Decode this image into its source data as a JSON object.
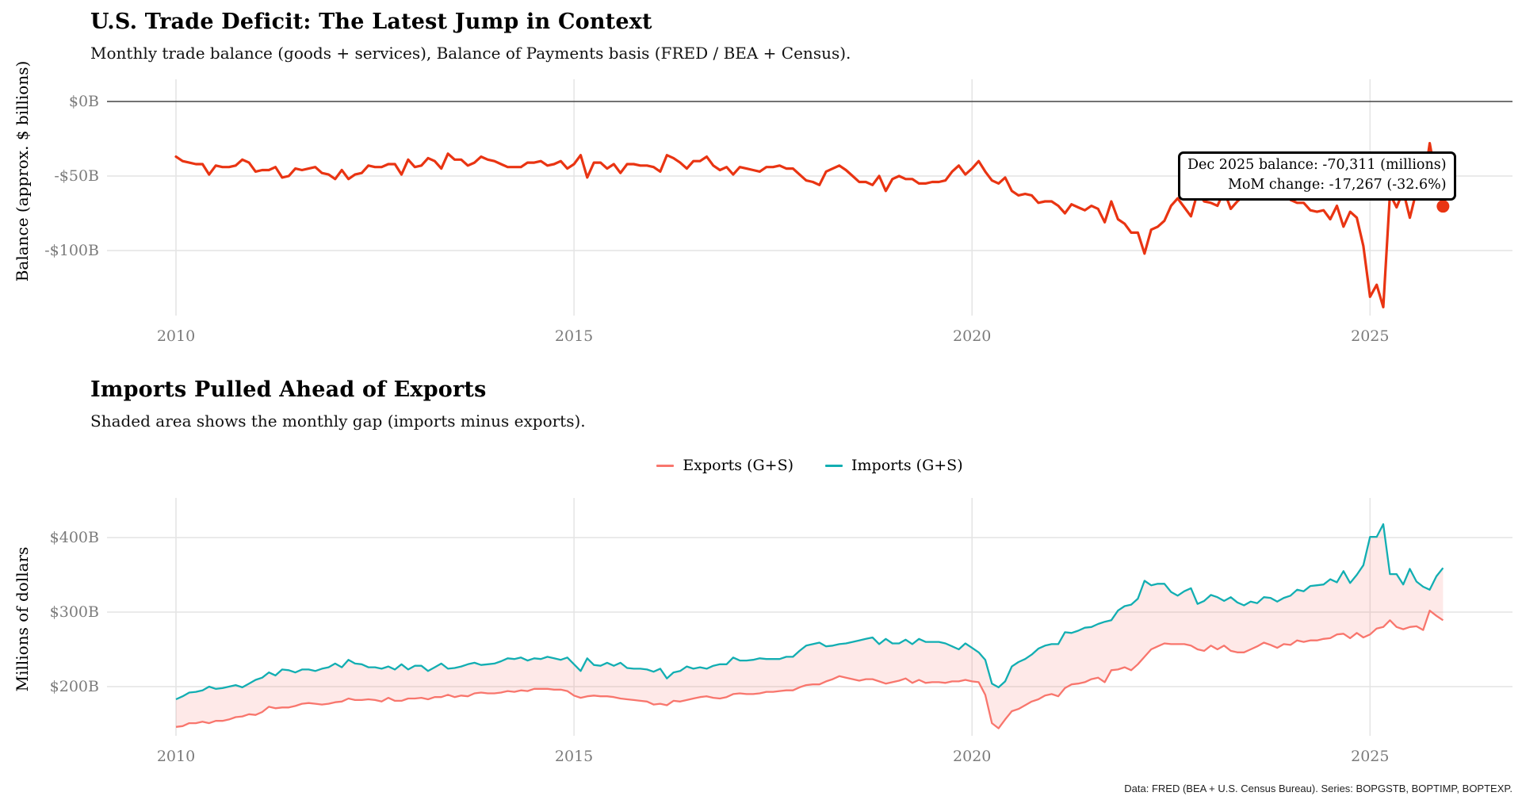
{
  "footer": {
    "text": "Data: FRED (BEA + U.S. Census Bureau). Series: BOPGSTB, BOPTIMP, BOPTEXP."
  },
  "colors": {
    "balance_line": "#e93412",
    "exports_line": "#f8766d",
    "imports_line": "#12aeb2",
    "gap_fill": "rgba(248,118,109,0.16)",
    "zero_line": "#454545",
    "gridline": "#e4e4e4",
    "tick_text": "#7b7b7b",
    "annotation_border": "#000000",
    "background": "#ffffff"
  },
  "chart_data": [
    {
      "type": "line",
      "title": "U.S. Trade Deficit: The Latest Jump in Context",
      "subtitle": "Monthly trade balance (goods + services), Balance of Payments basis (FRED / BEA + Census).",
      "ylabel": "Balance (approx. $ billions)",
      "xlabel": "",
      "x_start": "2010-01",
      "x_interval": "month",
      "x_tick_values": [
        2010,
        2015,
        2020,
        2025
      ],
      "x_tick_labels": [
        "2010",
        "2015",
        "2020",
        "2025"
      ],
      "y_tick_values": [
        0,
        -50,
        -100
      ],
      "y_tick_labels": [
        "$0B",
        "-$50B",
        "-$100B"
      ],
      "ylim": [
        -141,
        15
      ],
      "grid": true,
      "annotation": {
        "line1": "Dec 2025 balance: -70,311 (millions)",
        "line2": "MoM change: -17,267 (-32.6%)"
      },
      "last_point": {
        "label": "Dec 2025",
        "balance_millions": -70311,
        "mom_change_millions": -17267,
        "mom_change_pct": -32.6
      },
      "series": [
        {
          "name": "Trade balance (goods + services)",
          "color": "#e93412",
          "units": "USD billions (approx.)",
          "values": [
            -37,
            -40,
            -41,
            -42,
            -42,
            -49,
            -43,
            -44,
            -44,
            -43,
            -39,
            -41,
            -47,
            -46,
            -46,
            -44,
            -51,
            -50,
            -45,
            -46,
            -45,
            -44,
            -48,
            -49,
            -52,
            -46,
            -52,
            -49,
            -48,
            -43,
            -44,
            -44,
            -42,
            -42,
            -49,
            -39,
            -44,
            -43,
            -38,
            -40,
            -45,
            -35,
            -39,
            -39,
            -43,
            -41,
            -37,
            -39,
            -40,
            -42,
            -44,
            -44,
            -44,
            -41,
            -41,
            -40,
            -43,
            -42,
            -40,
            -45,
            -42,
            -36,
            -51,
            -41,
            -41,
            -45,
            -42,
            -48,
            -42,
            -42,
            -43,
            -43,
            -44,
            -47,
            -36,
            -38,
            -41,
            -45,
            -40,
            -40,
            -37,
            -43,
            -46,
            -44,
            -49,
            -44,
            -45,
            -46,
            -47,
            -44,
            -44,
            -43,
            -45,
            -45,
            -49,
            -53,
            -54,
            -56,
            -47,
            -45,
            -43,
            -46,
            -50,
            -54,
            -54,
            -56,
            -50,
            -60,
            -52,
            -50,
            -52,
            -52,
            -55,
            -55,
            -54,
            -54,
            -53,
            -47,
            -43,
            -49,
            -45,
            -40,
            -47,
            -53,
            -55,
            -51,
            -60,
            -63,
            -62,
            -63,
            -68,
            -67,
            -67,
            -70,
            -75,
            -69,
            -71,
            -73,
            -70,
            -72,
            -81,
            -67,
            -79,
            -82,
            -88,
            -88,
            -102,
            -86,
            -84,
            -80,
            -70,
            -65,
            -71,
            -77,
            -61,
            -67,
            -68,
            -70,
            -60,
            -72,
            -67,
            -63,
            -64,
            -58,
            -61,
            -63,
            -62,
            -62,
            -66,
            -68,
            -68,
            -73,
            -74,
            -73,
            -79,
            -70,
            -84,
            -74,
            -78,
            -97,
            -131,
            -123,
            -138,
            -62,
            -71,
            -60,
            -78,
            -60,
            -58,
            -28,
            -53,
            -70.3
          ]
        }
      ]
    },
    {
      "type": "area",
      "title": "Imports Pulled Ahead of Exports",
      "subtitle": "Shaded area shows the monthly gap (imports minus exports).",
      "ylabel": "Millions of dollars",
      "xlabel": "",
      "x_start": "2010-01",
      "x_interval": "month",
      "x_tick_values": [
        2010,
        2015,
        2020,
        2025
      ],
      "x_tick_labels": [
        "2010",
        "2015",
        "2020",
        "2025"
      ],
      "y_tick_values": [
        400,
        300,
        200
      ],
      "y_tick_labels": [
        "$400B",
        "$300B",
        "$200B"
      ],
      "ylim": [
        130,
        450
      ],
      "grid": true,
      "legend_position": "top-center",
      "gap_fill_color": "rgba(248,118,109,0.16)",
      "series": [
        {
          "name": "Exports (G+S)",
          "color": "#f8766d",
          "units": "USD billions",
          "values": [
            146,
            147,
            151,
            151,
            153,
            151,
            154,
            154,
            156,
            159,
            160,
            163,
            162,
            166,
            173,
            171,
            172,
            172,
            174,
            177,
            178,
            177,
            176,
            177,
            179,
            180,
            184,
            182,
            182,
            183,
            182,
            180,
            185,
            181,
            181,
            184,
            184,
            185,
            183,
            186,
            186,
            189,
            186,
            188,
            187,
            191,
            192,
            191,
            191,
            192,
            194,
            193,
            195,
            194,
            197,
            197,
            197,
            196,
            196,
            194,
            188,
            185,
            187,
            188,
            187,
            187,
            186,
            184,
            183,
            182,
            181,
            180,
            176,
            177,
            175,
            181,
            180,
            182,
            184,
            186,
            187,
            185,
            184,
            186,
            190,
            191,
            190,
            190,
            191,
            193,
            193,
            194,
            195,
            195,
            199,
            202,
            203,
            203,
            207,
            210,
            214,
            212,
            210,
            208,
            210,
            210,
            207,
            204,
            206,
            208,
            211,
            205,
            209,
            205,
            206,
            206,
            205,
            207,
            207,
            209,
            207,
            206,
            189,
            151,
            144,
            156,
            167,
            170,
            175,
            180,
            183,
            188,
            190,
            187,
            198,
            203,
            204,
            206,
            210,
            212,
            206,
            222,
            223,
            226,
            222,
            230,
            240,
            250,
            254,
            258,
            257,
            257,
            257,
            255,
            250,
            248,
            255,
            250,
            255,
            248,
            246,
            246,
            250,
            254,
            259,
            256,
            252,
            257,
            256,
            262,
            260,
            262,
            262,
            264,
            265,
            270,
            271,
            265,
            272,
            266,
            270,
            278,
            280,
            289,
            280,
            277,
            280,
            281,
            276,
            302,
            295,
            289
          ]
        },
        {
          "name": "Imports (G+S)",
          "color": "#12aeb2",
          "units": "USD billions",
          "values": [
            183,
            187,
            192,
            193,
            195,
            200,
            197,
            198,
            200,
            202,
            199,
            204,
            209,
            212,
            219,
            215,
            223,
            222,
            219,
            223,
            223,
            221,
            224,
            226,
            231,
            226,
            236,
            231,
            230,
            226,
            226,
            224,
            227,
            223,
            230,
            223,
            228,
            228,
            221,
            226,
            231,
            224,
            225,
            227,
            230,
            232,
            229,
            230,
            231,
            234,
            238,
            237,
            239,
            235,
            238,
            237,
            240,
            238,
            236,
            239,
            230,
            221,
            238,
            229,
            228,
            232,
            228,
            232,
            225,
            224,
            224,
            223,
            220,
            224,
            211,
            219,
            221,
            227,
            224,
            226,
            224,
            228,
            230,
            230,
            239,
            235,
            235,
            236,
            238,
            237,
            237,
            237,
            240,
            240,
            248,
            255,
            257,
            259,
            254,
            255,
            257,
            258,
            260,
            262,
            264,
            266,
            257,
            264,
            258,
            258,
            263,
            257,
            264,
            260,
            260,
            260,
            258,
            254,
            250,
            258,
            252,
            246,
            236,
            204,
            199,
            207,
            227,
            233,
            237,
            243,
            251,
            255,
            257,
            257,
            273,
            272,
            275,
            279,
            280,
            284,
            287,
            289,
            302,
            308,
            310,
            318,
            342,
            336,
            338,
            338,
            327,
            322,
            328,
            332,
            311,
            315,
            323,
            320,
            315,
            320,
            313,
            309,
            314,
            312,
            320,
            319,
            314,
            319,
            322,
            330,
            328,
            335,
            336,
            337,
            344,
            340,
            355,
            339,
            350,
            363,
            401,
            401,
            418,
            351,
            351,
            337,
            358,
            341,
            334,
            330,
            348,
            359.3
          ]
        }
      ]
    }
  ]
}
